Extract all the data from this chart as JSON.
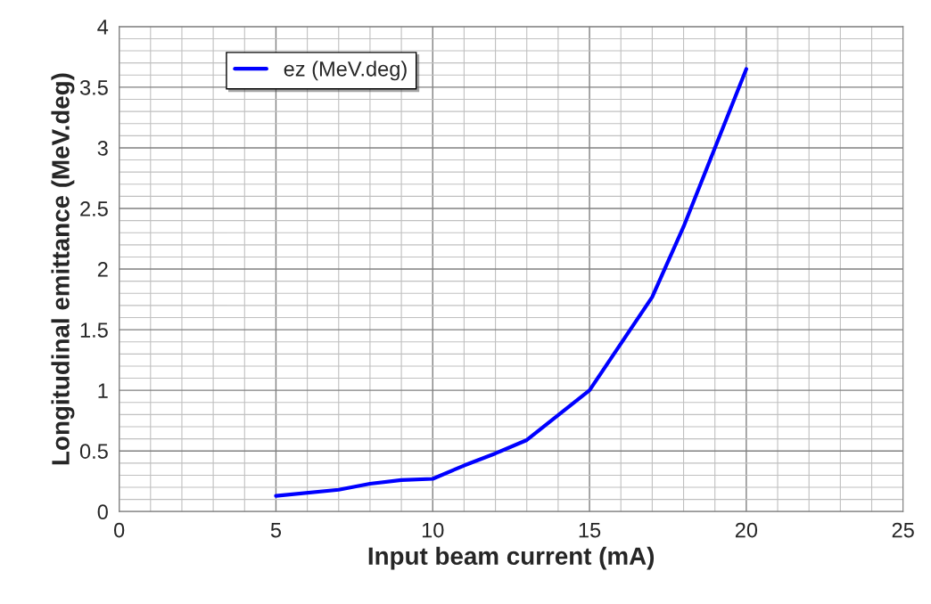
{
  "chart_data": {
    "type": "line",
    "xlabel": "Input beam current (mA)",
    "ylabel": "Longitudinal emittance (MeV.deg)",
    "x": [
      5,
      7,
      8,
      9,
      10,
      11,
      12,
      13,
      15,
      17,
      18,
      20
    ],
    "series": [
      {
        "name": "ez (MeV.deg)",
        "color": "#0000ff",
        "values": [
          0.13,
          0.18,
          0.23,
          0.26,
          0.27,
          0.38,
          0.48,
          0.59,
          1.0,
          1.77,
          2.35,
          3.65
        ]
      }
    ],
    "xlim": [
      0,
      25
    ],
    "xticks": [
      0,
      5,
      10,
      15,
      20,
      25
    ],
    "ylim": [
      0,
      4
    ],
    "yticks": [
      0,
      0.5,
      1,
      1.5,
      2,
      2.5,
      3,
      3.5,
      4
    ],
    "grid": true,
    "legend": "top left",
    "marker": "none",
    "line_style": "solid"
  }
}
